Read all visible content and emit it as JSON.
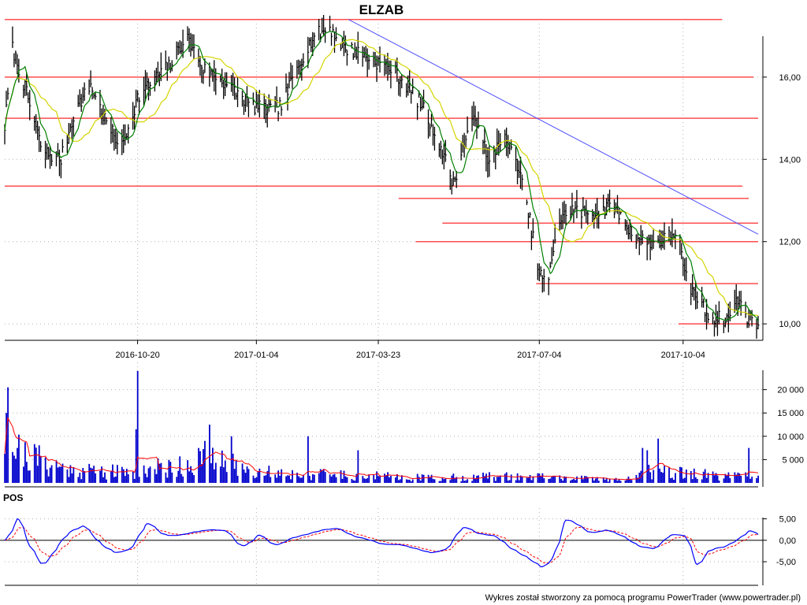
{
  "title": "ELZAB",
  "footer": "Wykres został stworzony za pomocą programu PowerTrader (www.powertrader.pl)",
  "colors": {
    "candle": "#000000",
    "sma_fast": "#008000",
    "sma_slow": "#d4d400",
    "support_lines": "#ff4d4d",
    "trendline": "#4d4dff",
    "volume_bars": "#0000cc",
    "volume_avg": "#ff0000",
    "pos_line": "#0000ff",
    "pos_signal": "#ff0000",
    "grid": "#b0b0b0"
  },
  "chart_data": [
    {
      "panel": "price",
      "type": "line",
      "title": "ELZAB",
      "chart_style": "high-low bars",
      "x_ticks": [
        "2016-10-20",
        "2017-01-04",
        "2017-03-23",
        "2017-07-04",
        "2017-10-04"
      ],
      "x_range": [
        "2016-07-27",
        "2017-11-21"
      ],
      "y_ticks": [
        "16,00",
        "14,00",
        "12,00",
        "10,00"
      ],
      "ylim": [
        9.6,
        17.3
      ],
      "grid": true,
      "price_anchors": {
        "dates": [
          "2016-07-27",
          "2016-08-01",
          "2016-08-10",
          "2016-08-20",
          "2016-09-01",
          "2016-09-10",
          "2016-09-20",
          "2016-10-01",
          "2016-10-10",
          "2016-10-20",
          "2016-11-01",
          "2016-11-10",
          "2016-11-20",
          "2016-12-01",
          "2016-12-10",
          "2016-12-20",
          "2017-01-01",
          "2017-01-10",
          "2017-01-20",
          "2017-02-01",
          "2017-02-10",
          "2017-02-20",
          "2017-03-01",
          "2017-03-10",
          "2017-03-20",
          "2017-04-01",
          "2017-04-10",
          "2017-04-20",
          "2017-05-01",
          "2017-05-10",
          "2017-05-20",
          "2017-05-27",
          "2017-06-01",
          "2017-06-10",
          "2017-06-20",
          "2017-06-28",
          "2017-07-04",
          "2017-07-10",
          "2017-07-15",
          "2017-07-24",
          "2017-08-01",
          "2017-08-10",
          "2017-08-20",
          "2017-09-01",
          "2017-09-10",
          "2017-09-20",
          "2017-10-01",
          "2017-10-04",
          "2017-10-08",
          "2017-10-12",
          "2017-10-20",
          "2017-11-01",
          "2017-11-08",
          "2017-11-15",
          "2017-11-21"
        ],
        "close": [
          14.8,
          16.7,
          15.6,
          14.2,
          14.0,
          15.2,
          15.8,
          14.8,
          14.3,
          15.5,
          16.0,
          16.3,
          17.0,
          16.2,
          16.0,
          15.7,
          15.3,
          15.2,
          15.3,
          16.4,
          17.0,
          17.2,
          16.7,
          16.6,
          16.4,
          16.2,
          15.8,
          15.3,
          14.4,
          13.4,
          14.8,
          15.0,
          13.8,
          14.6,
          13.9,
          12.5,
          11.2,
          11.0,
          12.4,
          12.8,
          12.7,
          12.7,
          12.9,
          12.2,
          12.0,
          12.0,
          12.3,
          11.3,
          10.9,
          10.7,
          10.2,
          10.1,
          10.6,
          10.1,
          10.0
        ]
      },
      "series": [
        {
          "name": "",
          "role": "sma_fast"
        },
        {
          "name": "",
          "role": "sma_slow"
        }
      ],
      "horizontal_lines": [
        {
          "y": 17.4,
          "x_range": [
            "2016-07-27",
            "2017-10-29"
          ]
        },
        {
          "y": 16.0,
          "x_range": [
            "2016-07-27",
            "2017-11-18"
          ]
        },
        {
          "y": 15.0,
          "x_range": [
            "2016-07-27",
            "2017-11-21"
          ]
        },
        {
          "y": 13.35,
          "x_range": [
            "2016-07-27",
            "2017-11-11"
          ]
        },
        {
          "y": 13.05,
          "x_range": [
            "2017-04-05",
            "2017-11-15"
          ]
        },
        {
          "y": 12.45,
          "x_range": [
            "2017-05-03",
            "2017-11-21"
          ]
        },
        {
          "y": 12.0,
          "x_range": [
            "2017-04-16",
            "2017-11-21"
          ]
        },
        {
          "y": 10.98,
          "x_range": [
            "2017-07-02",
            "2017-11-21"
          ]
        },
        {
          "y": 10.0,
          "x_range": [
            "2017-10-01",
            "2017-11-21"
          ]
        }
      ],
      "trendline": {
        "from": [
          "2017-03-04",
          17.4
        ],
        "to": [
          "2017-11-21",
          12.18
        ]
      }
    },
    {
      "panel": "volume",
      "type": "bar",
      "y_ticks": [
        "20 000",
        "15 000",
        "10 000",
        "5 000"
      ],
      "ylim": [
        0,
        24500
      ],
      "volume_anchors": {
        "dates": [
          "2016-07-27",
          "2016-08-01",
          "2016-08-15",
          "2016-09-01",
          "2016-09-20",
          "2016-10-10",
          "2016-10-20",
          "2016-11-01",
          "2016-11-15",
          "2016-12-01",
          "2016-12-15",
          "2017-01-01",
          "2017-02-01",
          "2017-03-01",
          "2017-04-01",
          "2017-05-01",
          "2017-06-01",
          "2017-07-01",
          "2017-08-01",
          "2017-09-01",
          "2017-09-15",
          "2017-10-01",
          "2017-10-15",
          "2017-11-01",
          "2017-11-21"
        ],
        "level": [
          11000,
          8000,
          6000,
          3500,
          3000,
          2500,
          3000,
          3500,
          4000,
          5500,
          4500,
          3000,
          2000,
          2000,
          1500,
          1200,
          1500,
          1500,
          1000,
          900,
          3000,
          2500,
          2000,
          1500,
          1500
        ]
      },
      "spikes": [
        {
          "date": "2016-07-29",
          "value": 20500
        },
        {
          "date": "2016-07-28",
          "value": 15000
        },
        {
          "date": "2016-08-04",
          "value": 7500
        },
        {
          "date": "2016-10-20",
          "value": 24000
        },
        {
          "date": "2016-10-19",
          "value": 11500
        },
        {
          "date": "2016-12-05",
          "value": 12500
        },
        {
          "date": "2016-12-03",
          "value": 9000
        },
        {
          "date": "2016-12-18",
          "value": 10000
        },
        {
          "date": "2017-02-06",
          "value": 10000
        },
        {
          "date": "2017-03-11",
          "value": 7000
        },
        {
          "date": "2017-09-08",
          "value": 7500
        },
        {
          "date": "2017-09-10",
          "value": 7000
        },
        {
          "date": "2017-09-18",
          "value": 9500
        },
        {
          "date": "2017-11-15",
          "value": 7500
        }
      ]
    },
    {
      "panel": "oscillator",
      "type": "line",
      "label": "POS",
      "y_ticks": [
        "5,00",
        "0,00",
        "-5,00"
      ],
      "ylim": [
        -10.5,
        7.5
      ],
      "zero_line": true,
      "pos_anchors": {
        "dates": [
          "2016-07-27",
          "2016-08-04",
          "2016-08-10",
          "2016-08-20",
          "2016-08-28",
          "2016-09-05",
          "2016-09-15",
          "2016-09-25",
          "2016-10-05",
          "2016-10-15",
          "2016-10-25",
          "2016-11-05",
          "2016-11-15",
          "2016-11-25",
          "2016-12-05",
          "2016-12-15",
          "2016-12-25",
          "2017-01-05",
          "2017-01-15",
          "2017-01-25",
          "2017-02-05",
          "2017-02-15",
          "2017-02-25",
          "2017-03-05",
          "2017-03-15",
          "2017-03-25",
          "2017-04-05",
          "2017-04-15",
          "2017-04-25",
          "2017-05-05",
          "2017-05-15",
          "2017-05-25",
          "2017-06-05",
          "2017-06-15",
          "2017-06-25",
          "2017-07-05",
          "2017-07-12",
          "2017-07-20",
          "2017-07-28",
          "2017-08-05",
          "2017-08-15",
          "2017-08-25",
          "2017-09-05",
          "2017-09-15",
          "2017-09-25",
          "2017-10-05",
          "2017-10-12",
          "2017-10-20",
          "2017-10-30",
          "2017-11-08",
          "2017-11-15",
          "2017-11-21"
        ],
        "values": [
          0.0,
          5.8,
          -1.0,
          -6.5,
          -1.5,
          2.0,
          3.5,
          -1.0,
          -3.0,
          -2.0,
          4.5,
          1.0,
          1.2,
          2.0,
          2.5,
          2.2,
          -2.0,
          1.5,
          -1.5,
          0.5,
          1.5,
          2.5,
          2.8,
          1.0,
          0.2,
          -1.0,
          -1.0,
          -2.0,
          -3.0,
          -2.0,
          3.5,
          1.5,
          1.0,
          -2.0,
          -4.0,
          -6.5,
          -4.0,
          5.5,
          3.5,
          1.5,
          2.5,
          1.0,
          -1.5,
          -2.0,
          1.5,
          1.0,
          -6.5,
          -2.0,
          -1.5,
          0.5,
          2.5,
          1.0
        ]
      },
      "signal": "smoothed"
    }
  ]
}
